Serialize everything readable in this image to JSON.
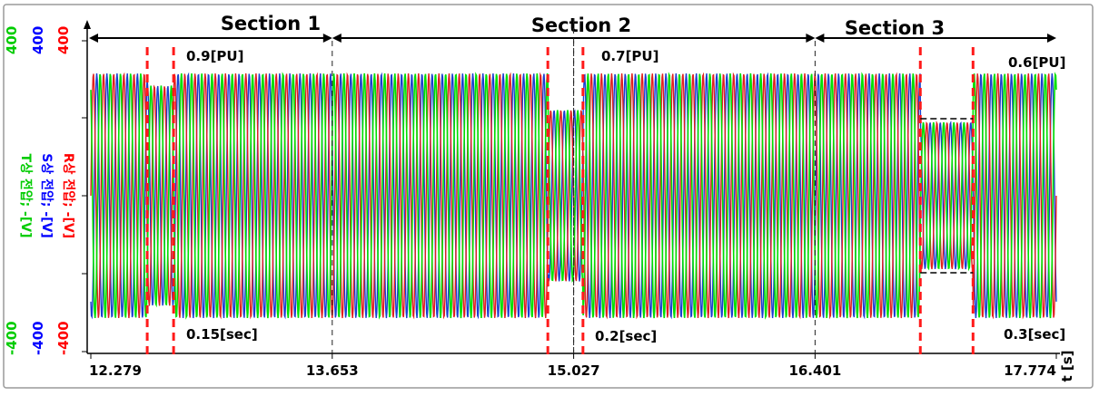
{
  "chart_data": {
    "type": "line",
    "x_unit": "t [s]",
    "x_ticks": [
      12.279,
      13.653,
      15.027,
      16.401,
      17.774
    ],
    "x_tick_labels": [
      "12.279",
      "13.653",
      "15.027",
      "16.401",
      "17.774"
    ],
    "xlim": [
      12.279,
      17.774
    ],
    "ylim": [
      -400,
      400
    ],
    "y_ticks": {
      "T": {
        "top": "400",
        "bottom": "-400",
        "color": "#00cc00"
      },
      "S": {
        "top": "400",
        "bottom": "-400",
        "color": "#0000ff"
      },
      "R": {
        "top": "400",
        "bottom": "-400",
        "color": "#ff0000"
      }
    },
    "ylabels": [
      {
        "text": "T상 전압; -[V]",
        "color": "#00cc00"
      },
      {
        "text": "S상 전압; -[V]",
        "color": "#0000ff"
      },
      {
        "text": "R상 전압; -[V]",
        "color": "#ff0000"
      }
    ],
    "series": [
      {
        "name": "R상 전압",
        "color": "#e02020"
      },
      {
        "name": "S상 전압",
        "color": "#1a3fd0"
      },
      {
        "name": "T상 전압",
        "color": "#00e000"
      }
    ],
    "nominal_amplitude": 311,
    "sags": [
      {
        "start": 12.6,
        "end": 12.75,
        "level": 0.9
      },
      {
        "start": 14.88,
        "end": 15.08,
        "level": 0.7
      },
      {
        "start": 17.0,
        "end": 17.3,
        "level": 0.6
      }
    ],
    "sections": [
      {
        "label": "Section 1",
        "start": 12.279,
        "end": 13.653
      },
      {
        "label": "Section 2",
        "start": 13.653,
        "end": 16.401
      },
      {
        "label": "Section 3",
        "start": 16.401,
        "end": 17.774
      }
    ],
    "annotations": {
      "pu": [
        "0.9[PU]",
        "0.7[PU]",
        "0.6[PU]"
      ],
      "sec": [
        "0.15[sec]",
        "0.2[sec]",
        "0.3[sec]"
      ]
    }
  }
}
